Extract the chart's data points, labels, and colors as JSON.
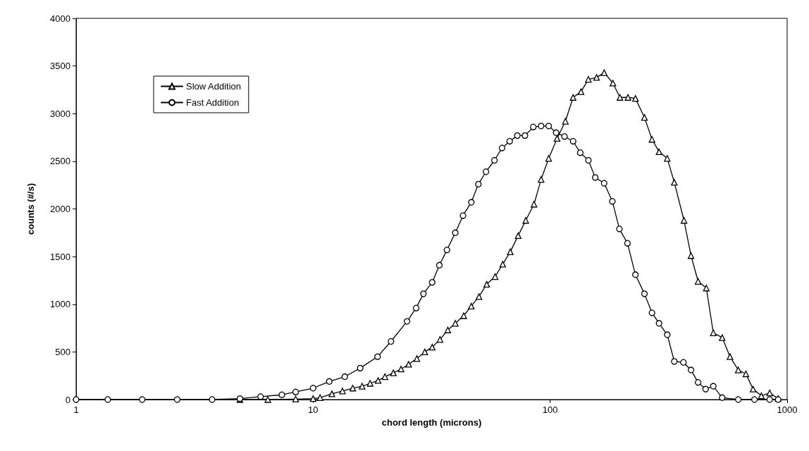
{
  "chart_data": {
    "type": "line",
    "xlabel": "chord length (microns)",
    "ylabel": "counts (#/s)",
    "log": "x",
    "xlim": [
      1,
      1000
    ],
    "xticks": [
      1,
      10,
      100,
      1000
    ],
    "ylim": [
      0,
      4000
    ],
    "yticks": [
      0,
      500,
      1000,
      1500,
      2000,
      2500,
      3000,
      3500,
      4000
    ],
    "grid": false,
    "legend": "top left",
    "line_style": "solid",
    "series": [
      {
        "name": "Slow Addition",
        "color": "#000000",
        "marker": "triangle",
        "x": [
          4.91,
          6.44,
          8.44,
          10,
          10.7,
          12.0,
          13.3,
          14.7,
          16.1,
          17.4,
          18.8,
          20.1,
          21.8,
          23.5,
          25.3,
          27.4,
          29.6,
          31.8,
          34.3,
          37.0,
          39.8,
          43.2,
          46.5,
          50.1,
          54.0,
          58.6,
          63.1,
          67.9,
          73.3,
          78.9,
          85.5,
          91.6,
          98.6,
          107,
          116,
          125,
          135,
          145,
          157,
          169,
          184,
          197,
          213,
          229,
          250,
          269,
          288,
          312,
          334,
          367,
          393,
          421,
          456,
          488,
          532,
          574,
          622,
          670,
          718,
          778,
          844,
          916
        ],
        "values": [
          0,
          0,
          5,
          10,
          20,
          60,
          90,
          120,
          140,
          170,
          200,
          240,
          280,
          320,
          370,
          430,
          500,
          550,
          630,
          730,
          800,
          880,
          980,
          1080,
          1210,
          1290,
          1420,
          1550,
          1720,
          1880,
          2050,
          2310,
          2530,
          2740,
          2920,
          3170,
          3230,
          3360,
          3380,
          3430,
          3320,
          3170,
          3170,
          3160,
          2960,
          2730,
          2600,
          2530,
          2280,
          1880,
          1510,
          1240,
          1170,
          700,
          650,
          450,
          310,
          270,
          110,
          40,
          70,
          10
        ]
      },
      {
        "name": "Fast Addition",
        "color": "#000000",
        "marker": "circle",
        "x": [
          1,
          1.36,
          1.9,
          2.67,
          3.75,
          4.91,
          6.0,
          7.38,
          8.44,
          10,
          11.7,
          13.6,
          15.8,
          18.7,
          21.3,
          24.9,
          27.2,
          29.2,
          31.8,
          34.1,
          36.7,
          39.8,
          42.9,
          46.5,
          49.8,
          53.6,
          58.2,
          62.7,
          67.5,
          72.7,
          78.3,
          84.9,
          91.6,
          98.6,
          106,
          115,
          125,
          134,
          145,
          155,
          169,
          183,
          196,
          212,
          229,
          250,
          269,
          288,
          312,
          334,
          365,
          393,
          421,
          453,
          488,
          532,
          622,
          728,
          844,
          916
        ],
        "values": [
          0,
          0,
          0,
          0,
          0,
          10,
          30,
          50,
          80,
          120,
          190,
          240,
          330,
          450,
          610,
          820,
          960,
          1110,
          1230,
          1410,
          1570,
          1750,
          1930,
          2070,
          2260,
          2390,
          2510,
          2640,
          2710,
          2770,
          2770,
          2860,
          2870,
          2870,
          2800,
          2760,
          2710,
          2590,
          2510,
          2330,
          2270,
          2080,
          1790,
          1640,
          1310,
          1110,
          910,
          800,
          680,
          400,
          390,
          310,
          180,
          110,
          140,
          20,
          0,
          0,
          0,
          0
        ]
      }
    ]
  }
}
